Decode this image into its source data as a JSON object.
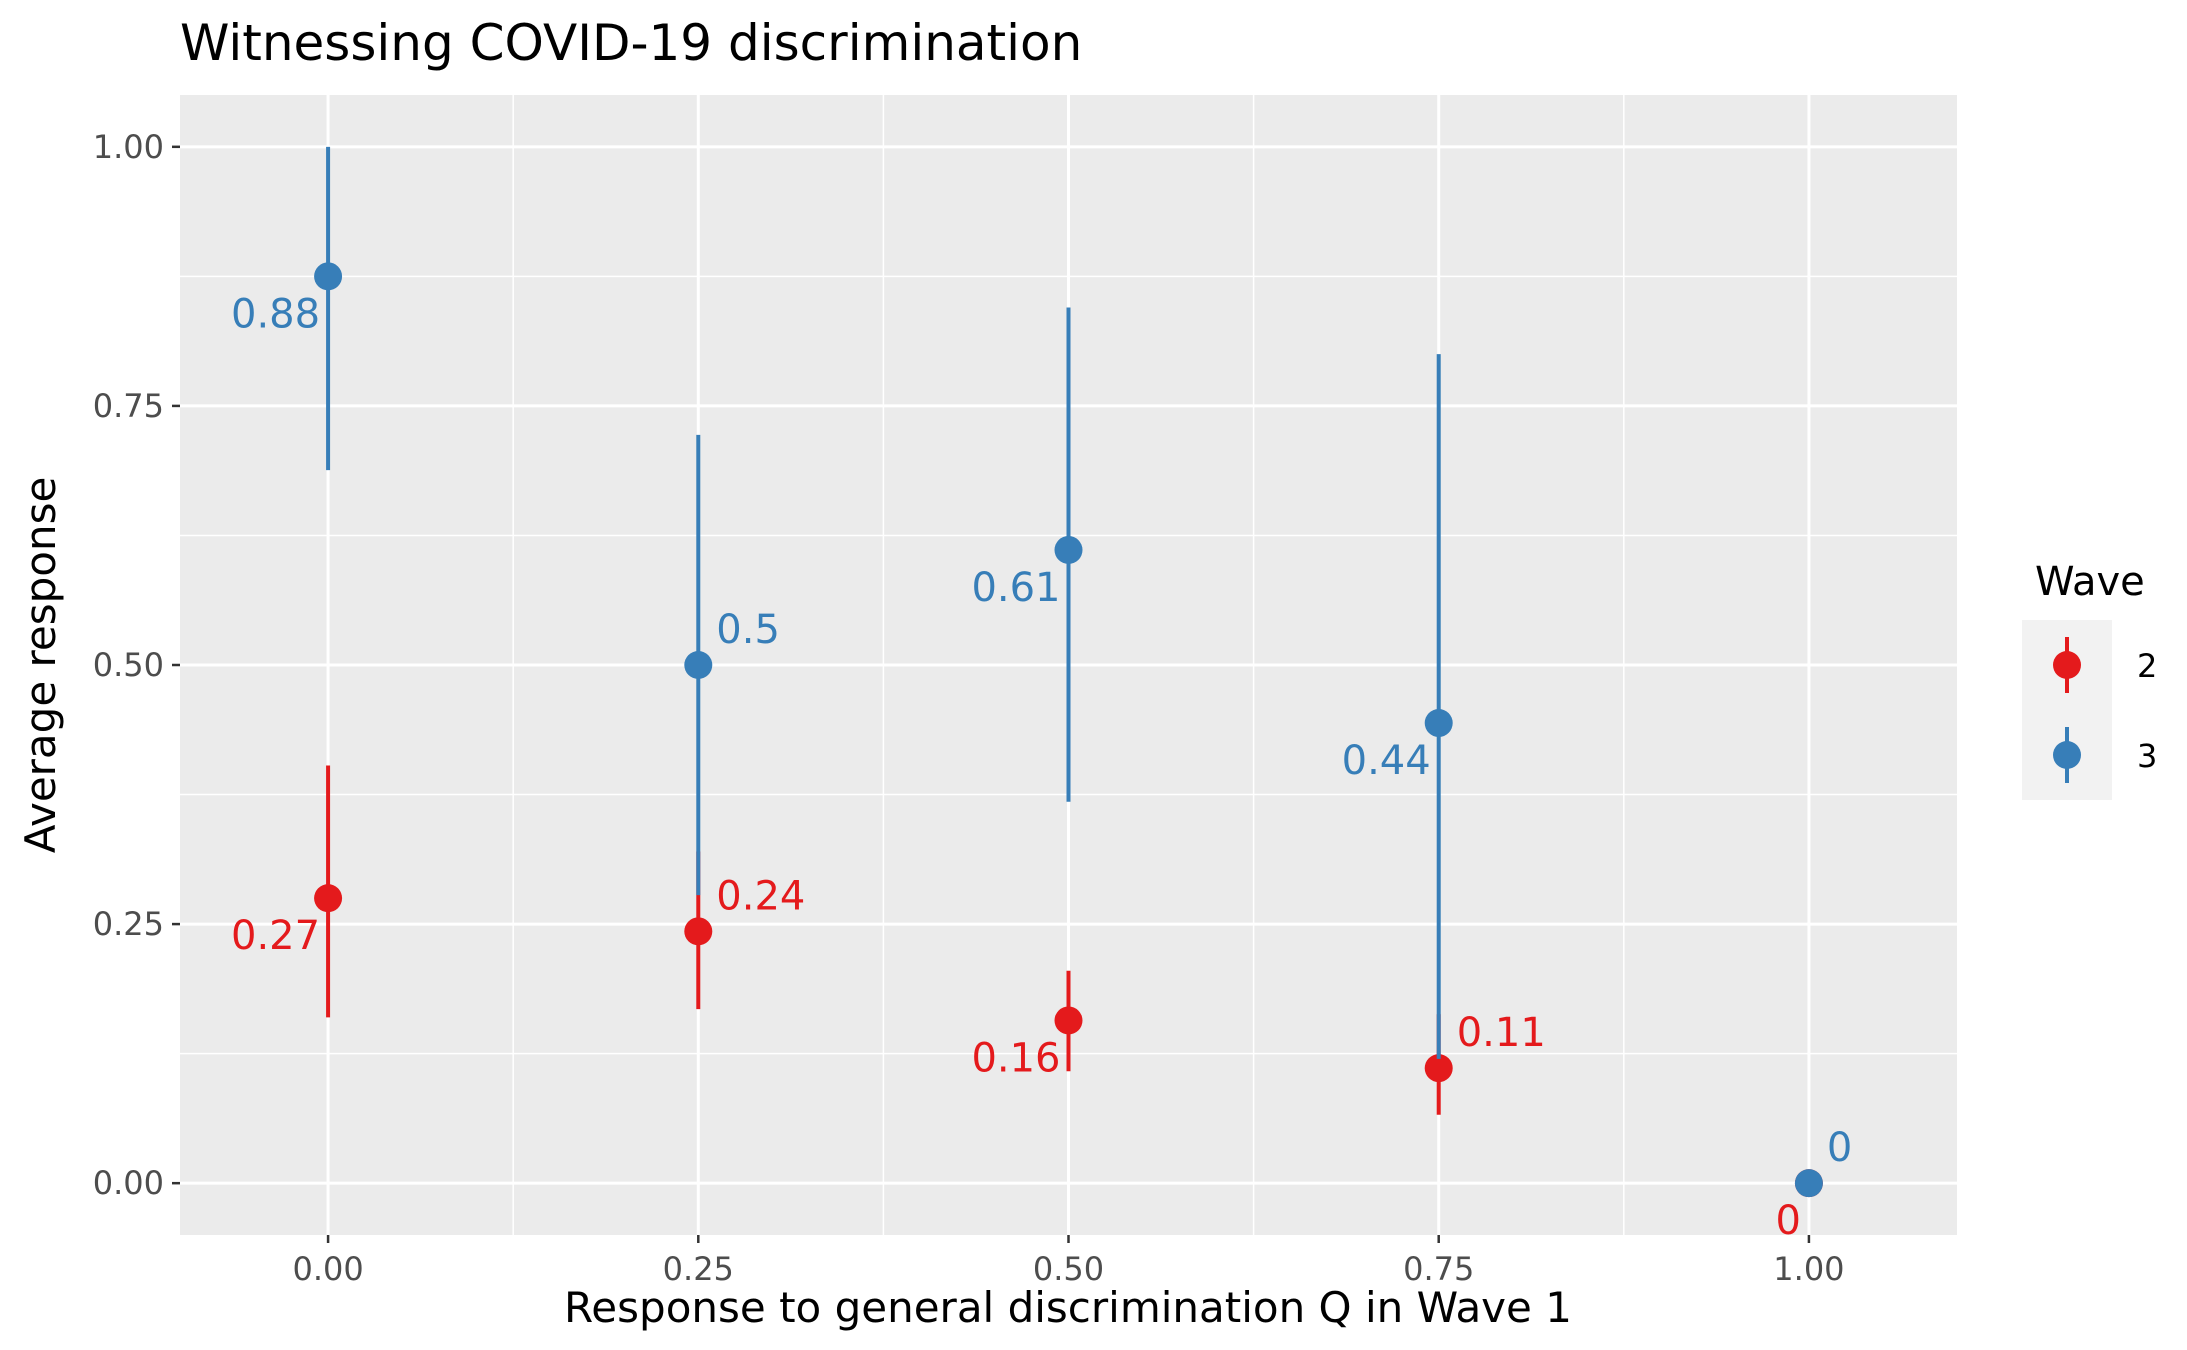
{
  "chart_data": {
    "type": "scatter",
    "title": "Witnessing COVID-19 discrimination",
    "xlabel": "Response to general discrimination Q in Wave 1",
    "ylabel": "Average response",
    "xlim": [
      -0.1,
      1.1
    ],
    "ylim": [
      -0.05,
      1.05
    ],
    "x_ticks": [
      0,
      0.25,
      0.5,
      0.75,
      1
    ],
    "x_tick_labels": [
      "0.00",
      "0.25",
      "0.50",
      "0.75",
      "1.00"
    ],
    "y_ticks": [
      0,
      0.25,
      0.5,
      0.75,
      1
    ],
    "y_tick_labels": [
      "0.00",
      "0.25",
      "0.50",
      "0.75",
      "1.00"
    ],
    "grid": true,
    "legend": {
      "title": "Wave",
      "position": "right"
    },
    "series": [
      {
        "name": "2",
        "color": "#E41A1C",
        "points": [
          {
            "x": 0.0,
            "y": 0.275,
            "ymin": 0.16,
            "ymax": 0.403,
            "label": "0.27",
            "label_pos": "bottom-left"
          },
          {
            "x": 0.25,
            "y": 0.243,
            "ymin": 0.168,
            "ymax": 0.32,
            "label": "0.24",
            "label_pos": "top-right"
          },
          {
            "x": 0.5,
            "y": 0.157,
            "ymin": 0.108,
            "ymax": 0.205,
            "label": "0.16",
            "label_pos": "bottom-left"
          },
          {
            "x": 0.75,
            "y": 0.111,
            "ymin": 0.066,
            "ymax": 0.163,
            "label": "0.11",
            "label_pos": "top-right"
          },
          {
            "x": 1.0,
            "y": 0.0,
            "ymin": 0.0,
            "ymax": 0.0,
            "label": "0",
            "label_pos": "bottom-left"
          }
        ]
      },
      {
        "name": "3",
        "color": "#377EB8",
        "points": [
          {
            "x": 0.0,
            "y": 0.875,
            "ymin": 0.688,
            "ymax": 1.0,
            "label": "0.88",
            "label_pos": "bottom-left"
          },
          {
            "x": 0.25,
            "y": 0.5,
            "ymin": 0.278,
            "ymax": 0.722,
            "label": "0.5",
            "label_pos": "top-right"
          },
          {
            "x": 0.5,
            "y": 0.611,
            "ymin": 0.368,
            "ymax": 0.845,
            "label": "0.61",
            "label_pos": "bottom-left"
          },
          {
            "x": 0.75,
            "y": 0.444,
            "ymin": 0.12,
            "ymax": 0.8,
            "label": "0.44",
            "label_pos": "bottom-left"
          },
          {
            "x": 1.0,
            "y": 0.0,
            "ymin": 0.0,
            "ymax": 0.0,
            "label": "0",
            "label_pos": "top-right"
          }
        ]
      }
    ]
  }
}
